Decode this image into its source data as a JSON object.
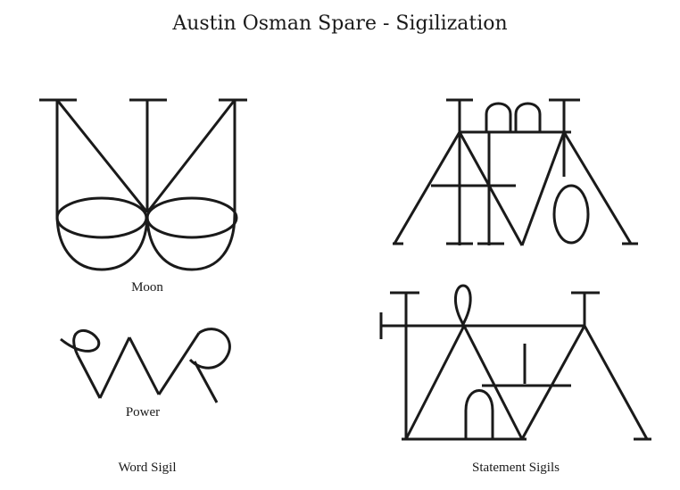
{
  "title": "Austin Osman Spare - Sigilization",
  "labels": {
    "moon": "Moon",
    "power": "Power",
    "word_sigil": "Word Sigil",
    "statement_sigils": "Statement Sigils"
  },
  "icons": [
    "moon-sigil-icon",
    "power-sigil-icon",
    "statement-sigil-1-icon",
    "statement-sigil-2-icon"
  ],
  "colors": {
    "ink": "#1a1a1a",
    "background": "#ffffff"
  }
}
